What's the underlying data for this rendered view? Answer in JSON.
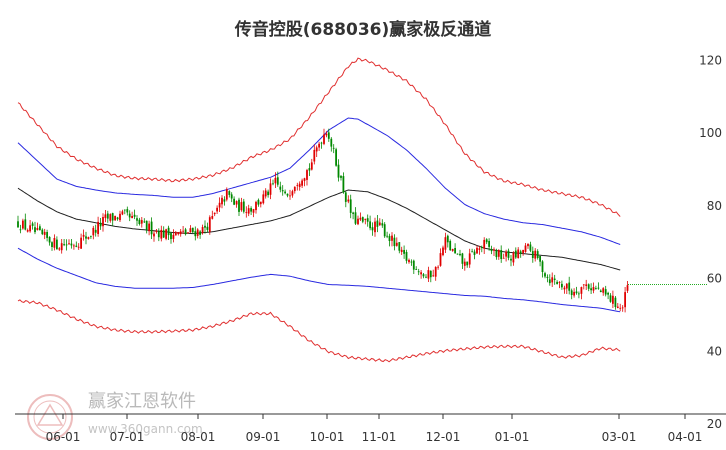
{
  "chart_data": {
    "type": "candlestick",
    "title": "传音控股(688036)赢家极反通道",
    "xlabel": "",
    "ylabel": "",
    "ylim": [
      20,
      130
    ],
    "y_ticks": [
      20,
      40,
      60,
      80,
      100,
      120
    ],
    "x_ticks": [
      "06-01",
      "07-01",
      "08-01",
      "09-01",
      "10-01",
      "11-01",
      "12-01",
      "01-01",
      "03-01",
      "04-01"
    ],
    "grid": false,
    "legend": "none",
    "colors": {
      "up": "#e00000",
      "down": "#008800",
      "outer_band": "#e03030",
      "inner_band": "#2a2ae0",
      "mid_line": "#222222",
      "last_price_line": "#22aa22",
      "axis": "#333333"
    },
    "series_points": {
      "outer_upper": [
        [
          0,
          110
        ],
        [
          20,
          104
        ],
        [
          40,
          98
        ],
        [
          60,
          94.5
        ],
        [
          80,
          92
        ],
        [
          100,
          90
        ],
        [
          120,
          89.2
        ],
        [
          140,
          89
        ],
        [
          160,
          88.5
        ],
        [
          180,
          89
        ],
        [
          200,
          90
        ],
        [
          220,
          92
        ],
        [
          240,
          95
        ],
        [
          260,
          97
        ],
        [
          280,
          100
        ],
        [
          300,
          106
        ],
        [
          320,
          113
        ],
        [
          340,
          120
        ],
        [
          350,
          122
        ],
        [
          360,
          121.5
        ],
        [
          380,
          119
        ],
        [
          400,
          116
        ],
        [
          420,
          111
        ],
        [
          440,
          104
        ],
        [
          460,
          96
        ],
        [
          480,
          91
        ],
        [
          500,
          88.5
        ],
        [
          520,
          87.5
        ],
        [
          540,
          86
        ],
        [
          560,
          85
        ],
        [
          580,
          84
        ],
        [
          600,
          82
        ],
        [
          620,
          79
        ]
      ],
      "inner_upper": [
        [
          0,
          99
        ],
        [
          20,
          94
        ],
        [
          40,
          89
        ],
        [
          60,
          87
        ],
        [
          80,
          86
        ],
        [
          100,
          85.2
        ],
        [
          120,
          84.8
        ],
        [
          140,
          84.5
        ],
        [
          160,
          84
        ],
        [
          180,
          84
        ],
        [
          200,
          85
        ],
        [
          220,
          86.5
        ],
        [
          240,
          88
        ],
        [
          260,
          89.5
        ],
        [
          280,
          92
        ],
        [
          300,
          97
        ],
        [
          320,
          102.5
        ],
        [
          340,
          105.8
        ],
        [
          350,
          105.5
        ],
        [
          360,
          104
        ],
        [
          380,
          101
        ],
        [
          400,
          97
        ],
        [
          420,
          92
        ],
        [
          440,
          86.5
        ],
        [
          460,
          82
        ],
        [
          480,
          79.5
        ],
        [
          500,
          78
        ],
        [
          520,
          77
        ],
        [
          540,
          76.5
        ],
        [
          560,
          75.5
        ],
        [
          580,
          74.5
        ],
        [
          600,
          73
        ],
        [
          620,
          71
        ]
      ],
      "middle": [
        [
          0,
          86.5
        ],
        [
          20,
          83
        ],
        [
          40,
          80
        ],
        [
          60,
          78
        ],
        [
          80,
          77
        ],
        [
          100,
          76
        ],
        [
          120,
          75.3
        ],
        [
          140,
          74.8
        ],
        [
          160,
          74.3
        ],
        [
          180,
          74
        ],
        [
          200,
          74.5
        ],
        [
          220,
          75.5
        ],
        [
          240,
          76.5
        ],
        [
          260,
          77.5
        ],
        [
          280,
          79
        ],
        [
          300,
          81.5
        ],
        [
          320,
          84
        ],
        [
          340,
          86
        ],
        [
          360,
          85.5
        ],
        [
          380,
          83.5
        ],
        [
          400,
          81
        ],
        [
          420,
          78
        ],
        [
          440,
          75
        ],
        [
          460,
          72
        ],
        [
          480,
          70
        ],
        [
          500,
          69
        ],
        [
          520,
          68.5
        ],
        [
          540,
          68
        ],
        [
          560,
          67.5
        ],
        [
          580,
          66.5
        ],
        [
          600,
          65.5
        ],
        [
          620,
          64
        ]
      ],
      "inner_lower": [
        [
          0,
          70
        ],
        [
          20,
          67
        ],
        [
          40,
          64.5
        ],
        [
          60,
          62.5
        ],
        [
          80,
          60.5
        ],
        [
          100,
          59.5
        ],
        [
          120,
          59
        ],
        [
          140,
          59
        ],
        [
          160,
          59
        ],
        [
          180,
          59.2
        ],
        [
          200,
          60
        ],
        [
          220,
          61
        ],
        [
          240,
          62
        ],
        [
          260,
          62.8
        ],
        [
          280,
          62.3
        ],
        [
          300,
          61
        ],
        [
          320,
          60
        ],
        [
          340,
          59.8
        ],
        [
          360,
          59.5
        ],
        [
          380,
          59
        ],
        [
          400,
          58.5
        ],
        [
          420,
          58
        ],
        [
          440,
          57.5
        ],
        [
          460,
          57
        ],
        [
          480,
          56.8
        ],
        [
          500,
          56.2
        ],
        [
          520,
          55.8
        ],
        [
          540,
          55.2
        ],
        [
          560,
          54.5
        ],
        [
          580,
          54
        ],
        [
          600,
          53.5
        ],
        [
          620,
          52.5
        ]
      ],
      "outer_lower": [
        [
          0,
          55.5
        ],
        [
          20,
          55
        ],
        [
          40,
          53
        ],
        [
          60,
          50.5
        ],
        [
          80,
          48.5
        ],
        [
          100,
          47.5
        ],
        [
          120,
          47
        ],
        [
          140,
          47
        ],
        [
          160,
          47.2
        ],
        [
          180,
          47.5
        ],
        [
          200,
          48.5
        ],
        [
          220,
          50
        ],
        [
          240,
          52
        ],
        [
          260,
          52
        ],
        [
          280,
          48.5
        ],
        [
          300,
          44.5
        ],
        [
          320,
          41.5
        ],
        [
          340,
          40
        ],
        [
          360,
          39.5
        ],
        [
          380,
          39
        ],
        [
          400,
          40
        ],
        [
          420,
          41
        ],
        [
          440,
          41.8
        ],
        [
          460,
          42.3
        ],
        [
          480,
          42.8
        ],
        [
          500,
          43
        ],
        [
          520,
          43
        ],
        [
          540,
          41.5
        ],
        [
          560,
          40
        ],
        [
          580,
          40.5
        ],
        [
          600,
          42.5
        ],
        [
          620,
          42
        ]
      ]
    },
    "price_path": [
      [
        0,
        77
      ],
      [
        20,
        74
      ],
      [
        40,
        71
      ],
      [
        60,
        71.5
      ],
      [
        75,
        74
      ],
      [
        90,
        78
      ],
      [
        110,
        79
      ],
      [
        130,
        76
      ],
      [
        150,
        74
      ],
      [
        170,
        74
      ],
      [
        190,
        75
      ],
      [
        200,
        78
      ],
      [
        215,
        85
      ],
      [
        225,
        81.5
      ],
      [
        240,
        81
      ],
      [
        255,
        84.5
      ],
      [
        265,
        88
      ],
      [
        275,
        84
      ],
      [
        285,
        88
      ],
      [
        300,
        92
      ],
      [
        310,
        99
      ],
      [
        318,
        103
      ],
      [
        325,
        96
      ],
      [
        335,
        86
      ],
      [
        345,
        78
      ],
      [
        360,
        76.5
      ],
      [
        375,
        75.5
      ],
      [
        385,
        72
      ],
      [
        395,
        68
      ],
      [
        410,
        65
      ],
      [
        420,
        62
      ],
      [
        430,
        64
      ],
      [
        440,
        72
      ],
      [
        450,
        68
      ],
      [
        460,
        65.5
      ],
      [
        470,
        69
      ],
      [
        480,
        71
      ],
      [
        495,
        68
      ],
      [
        510,
        67.5
      ],
      [
        525,
        70
      ],
      [
        535,
        67
      ],
      [
        545,
        62
      ],
      [
        560,
        60
      ],
      [
        570,
        58
      ],
      [
        585,
        60
      ],
      [
        600,
        58
      ],
      [
        615,
        55
      ],
      [
        622,
        53
      ],
      [
        628,
        60
      ]
    ],
    "last_price": 60
  }
}
